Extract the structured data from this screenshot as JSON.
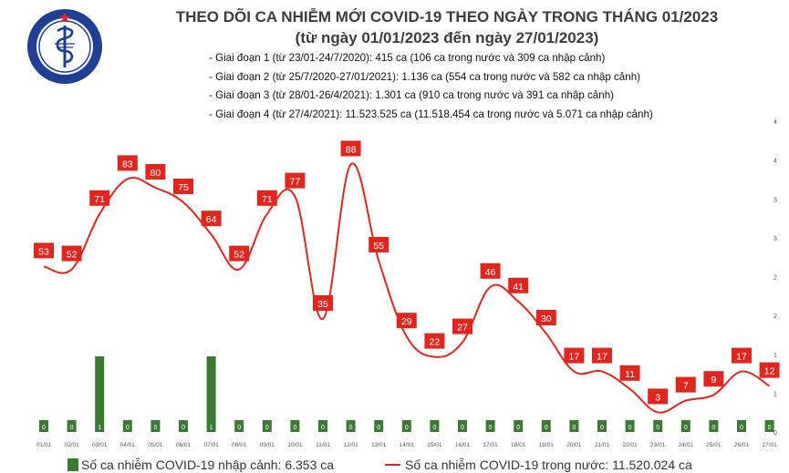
{
  "header": {
    "title": "THEO DÕI CA NHIỄM MỚI COVID-19 THEO NGÀY TRONG THÁNG 01/2023",
    "subtitle": "(từ ngày 01/01/2023 đến ngày 27/01/2023)"
  },
  "logo": {
    "top_text": "BỘ Y TẾ",
    "bottom_text": "MINISTRY OF HEALTH",
    "colors": {
      "ring": "#1f3f95",
      "star": "#e3262d",
      "field": "#ffffff"
    }
  },
  "notes": [
    "- Giai đoạn 1 (từ 23/01-24/7/2020): 415 ca (106 ca trong nước và 309 ca nhập cảnh)",
    "- Giai đoạn 2 (từ 25/7/2020-27/01/2021): 1.136 ca (554 ca trong nước và 582 ca nhập cảnh)",
    "- Giai đoạn 3 (từ 28/01-26/4/2021): 1.301 ca (910 ca trong nước và 391 ca nhập cảnh)",
    "- Giai đoạn 4 (từ 27/4/2021): 11.523.525 ca (11.518.454 ca trong nước và 5.071 ca nhập cảnh)"
  ],
  "legend": {
    "bar_label": "Số ca nhiễm COVID-19 nhập cảnh: 6.353 ca",
    "line_label": "Số ca nhiễm COVID-19 trong nước: 11.520.024 ca"
  },
  "chart_data": {
    "type": "bar+line",
    "categories": [
      "01/01",
      "02/01",
      "03/01",
      "04/01",
      "05/01",
      "06/01",
      "07/01",
      "08/01",
      "09/01",
      "10/01",
      "11/01",
      "12/01",
      "13/01",
      "14/01",
      "15/01",
      "16/01",
      "17/01",
      "18/01",
      "19/01",
      "20/01",
      "21/01",
      "22/01",
      "23/01",
      "24/01",
      "25/01",
      "26/01",
      "27/01"
    ],
    "series": [
      {
        "name": "Số ca nhiễm COVID-19 nhập cảnh: 6.353 ca",
        "type": "bar",
        "axis": "right",
        "color": "#3a7a32",
        "values": [
          0,
          0,
          1,
          0,
          0,
          0,
          1,
          0,
          0,
          0,
          0,
          0,
          0,
          0,
          0,
          0,
          0,
          0,
          0,
          0,
          0,
          0,
          0,
          0,
          0,
          0,
          0
        ]
      },
      {
        "name": "Số ca nhiễm COVID-19 trong nước: 11.520.024 ca",
        "type": "line",
        "axis": "left",
        "color": "#e0271f",
        "values": [
          53,
          52,
          71,
          83,
          80,
          75,
          64,
          52,
          71,
          77,
          35,
          88,
          55,
          29,
          22,
          27,
          46,
          41,
          30,
          17,
          17,
          11,
          3,
          7,
          9,
          17,
          12
        ]
      }
    ],
    "right_axis": {
      "ticks": [
        "0",
        "1",
        "1",
        "2",
        "2",
        "3",
        "3",
        "4",
        "4"
      ],
      "ylim": [
        0,
        4
      ]
    },
    "line_ylim": [
      0,
      95
    ],
    "grid": false,
    "legend_position": "bottom"
  }
}
